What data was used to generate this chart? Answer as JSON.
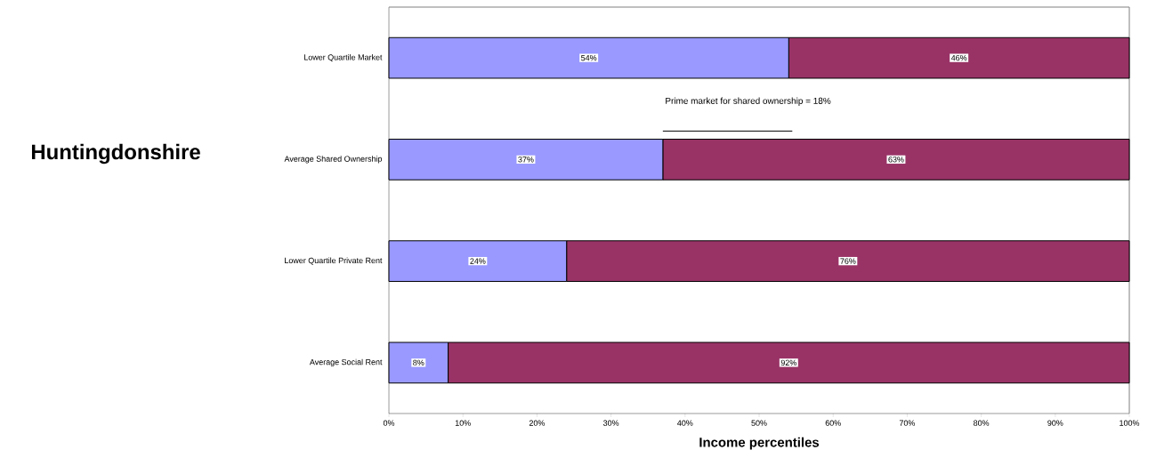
{
  "chart_data": {
    "type": "bar",
    "orientation": "horizontal",
    "stacked": true,
    "title": "Huntingdonshire",
    "xlabel": "Income percentiles",
    "categories": [
      "Lower Quartile Market",
      "Average Shared Ownership",
      "Lower Quartile Private Rent",
      "Average Social Rent"
    ],
    "series": [
      {
        "color": "#9999ff",
        "values": [
          54,
          37,
          24,
          8
        ],
        "value_labels": [
          "54%",
          "37%",
          "24%",
          "8%"
        ]
      },
      {
        "color": "#993366",
        "values": [
          46,
          63,
          76,
          92
        ],
        "value_labels": [
          "46%",
          "63%",
          "76%",
          "92%"
        ]
      }
    ],
    "xlim": [
      0,
      100
    ],
    "xticks": [
      {
        "value": 0,
        "label": "0%"
      },
      {
        "value": 10,
        "label": "10%"
      },
      {
        "value": 20,
        "label": "20%"
      },
      {
        "value": 30,
        "label": "30%"
      },
      {
        "value": 40,
        "label": "40%"
      },
      {
        "value": 50,
        "label": "50%"
      },
      {
        "value": 60,
        "label": "60%"
      },
      {
        "value": 70,
        "label": "70%"
      },
      {
        "value": 80,
        "label": "80%"
      },
      {
        "value": 90,
        "label": "90%"
      },
      {
        "value": 100,
        "label": "100%"
      }
    ],
    "annotations": [
      "Prime market for shared ownership = 18%"
    ],
    "grid": false
  }
}
